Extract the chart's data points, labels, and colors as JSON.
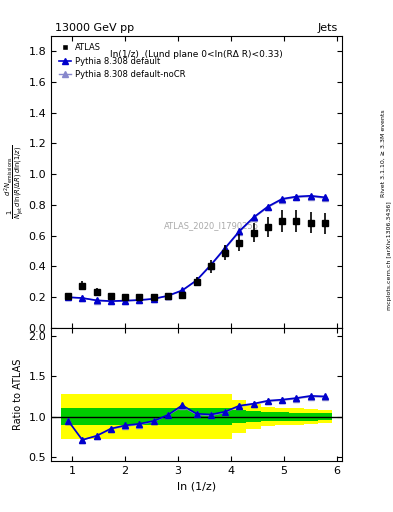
{
  "title_top": "13000 GeV pp",
  "title_right": "Jets",
  "panel_label": "ln(1/z)  (Lund plane 0<ln(RΔ R)<0.33)",
  "xlabel": "ln (1/z)",
  "ylabel_main": "\\frac{1}{N_{jet}} \\frac{d^2 N_{emissions}}{d\\ln(R/\\Delta R)\\, d\\ln(1/z)}",
  "ylabel_ratio": "Ratio to ATLAS",
  "watermark": "ATLAS_2020_I1790256",
  "right_label": "Rivet 3.1.10, ≥ 3.3M events",
  "right_label2": "mcplots.cern.ch [arXiv:1306.3436]",
  "x_atlas": [
    0.92,
    1.19,
    1.46,
    1.73,
    2.0,
    2.27,
    2.54,
    2.81,
    3.08,
    3.35,
    3.62,
    3.89,
    4.16,
    4.43,
    4.7,
    4.97,
    5.24,
    5.51,
    5.78
  ],
  "y_atlas": [
    0.21,
    0.275,
    0.235,
    0.205,
    0.2,
    0.2,
    0.2,
    0.205,
    0.215,
    0.3,
    0.4,
    0.49,
    0.555,
    0.62,
    0.66,
    0.695,
    0.695,
    0.685,
    0.68
  ],
  "x_pythia": [
    0.92,
    1.19,
    1.46,
    1.73,
    2.0,
    2.27,
    2.54,
    2.81,
    3.08,
    3.35,
    3.62,
    3.89,
    4.16,
    4.43,
    4.7,
    4.97,
    5.24,
    5.51,
    5.78
  ],
  "y_pythia_default": [
    0.2,
    0.195,
    0.18,
    0.175,
    0.178,
    0.182,
    0.19,
    0.21,
    0.245,
    0.31,
    0.41,
    0.52,
    0.63,
    0.72,
    0.79,
    0.84,
    0.855,
    0.86,
    0.85
  ],
  "y_pythia_nocr": [
    0.2,
    0.195,
    0.178,
    0.173,
    0.176,
    0.18,
    0.188,
    0.208,
    0.242,
    0.308,
    0.405,
    0.515,
    0.625,
    0.715,
    0.785,
    0.835,
    0.85,
    0.855,
    0.845
  ],
  "ratio_default": [
    0.95,
    0.71,
    0.76,
    0.85,
    0.89,
    0.91,
    0.945,
    1.02,
    1.14,
    1.035,
    1.025,
    1.06,
    1.135,
    1.16,
    1.197,
    1.21,
    1.23,
    1.257,
    1.25
  ],
  "ratio_nocr": [
    0.95,
    0.71,
    0.76,
    0.843,
    0.88,
    0.9,
    0.94,
    1.015,
    1.126,
    1.027,
    1.013,
    1.052,
    1.126,
    1.153,
    1.188,
    1.201,
    1.222,
    1.247,
    1.242
  ],
  "atlas_err_y": [
    0.02,
    0.03,
    0.025,
    0.02,
    0.02,
    0.02,
    0.02,
    0.02,
    0.02,
    0.03,
    0.04,
    0.05,
    0.055,
    0.06,
    0.065,
    0.07,
    0.07,
    0.07,
    0.07
  ],
  "band_yellow_lo": [
    0.72,
    0.72,
    0.72,
    0.72,
    0.72,
    0.72,
    0.72,
    0.72,
    0.72,
    0.72,
    0.72,
    0.72,
    0.8,
    0.85,
    0.88,
    0.89,
    0.9,
    0.91,
    0.92
  ],
  "band_yellow_hi": [
    1.28,
    1.28,
    1.28,
    1.28,
    1.28,
    1.28,
    1.28,
    1.28,
    1.28,
    1.28,
    1.28,
    1.28,
    1.2,
    1.15,
    1.12,
    1.11,
    1.1,
    1.09,
    1.08
  ],
  "band_green_lo": [
    0.9,
    0.9,
    0.9,
    0.9,
    0.9,
    0.9,
    0.9,
    0.9,
    0.9,
    0.9,
    0.9,
    0.9,
    0.92,
    0.93,
    0.94,
    0.94,
    0.95,
    0.95,
    0.96
  ],
  "band_green_hi": [
    1.1,
    1.1,
    1.1,
    1.1,
    1.1,
    1.1,
    1.1,
    1.1,
    1.1,
    1.1,
    1.1,
    1.1,
    1.08,
    1.07,
    1.06,
    1.06,
    1.05,
    1.05,
    1.04
  ],
  "color_atlas": "#000000",
  "color_default": "#0000cc",
  "color_nocr": "#8888cc",
  "color_yellow": "#ffff00",
  "color_green": "#00cc00",
  "xlim": [
    0.6,
    6.1
  ],
  "ylim_main": [
    0.0,
    1.9
  ],
  "ylim_ratio": [
    0.45,
    2.1
  ],
  "yticks_main": [
    0.0,
    0.2,
    0.4,
    0.6,
    0.8,
    1.0,
    1.2,
    1.4,
    1.6,
    1.8
  ],
  "yticks_ratio": [
    0.5,
    1.0,
    1.5,
    2.0
  ],
  "xticks": [
    1,
    2,
    3,
    4,
    5,
    6
  ]
}
